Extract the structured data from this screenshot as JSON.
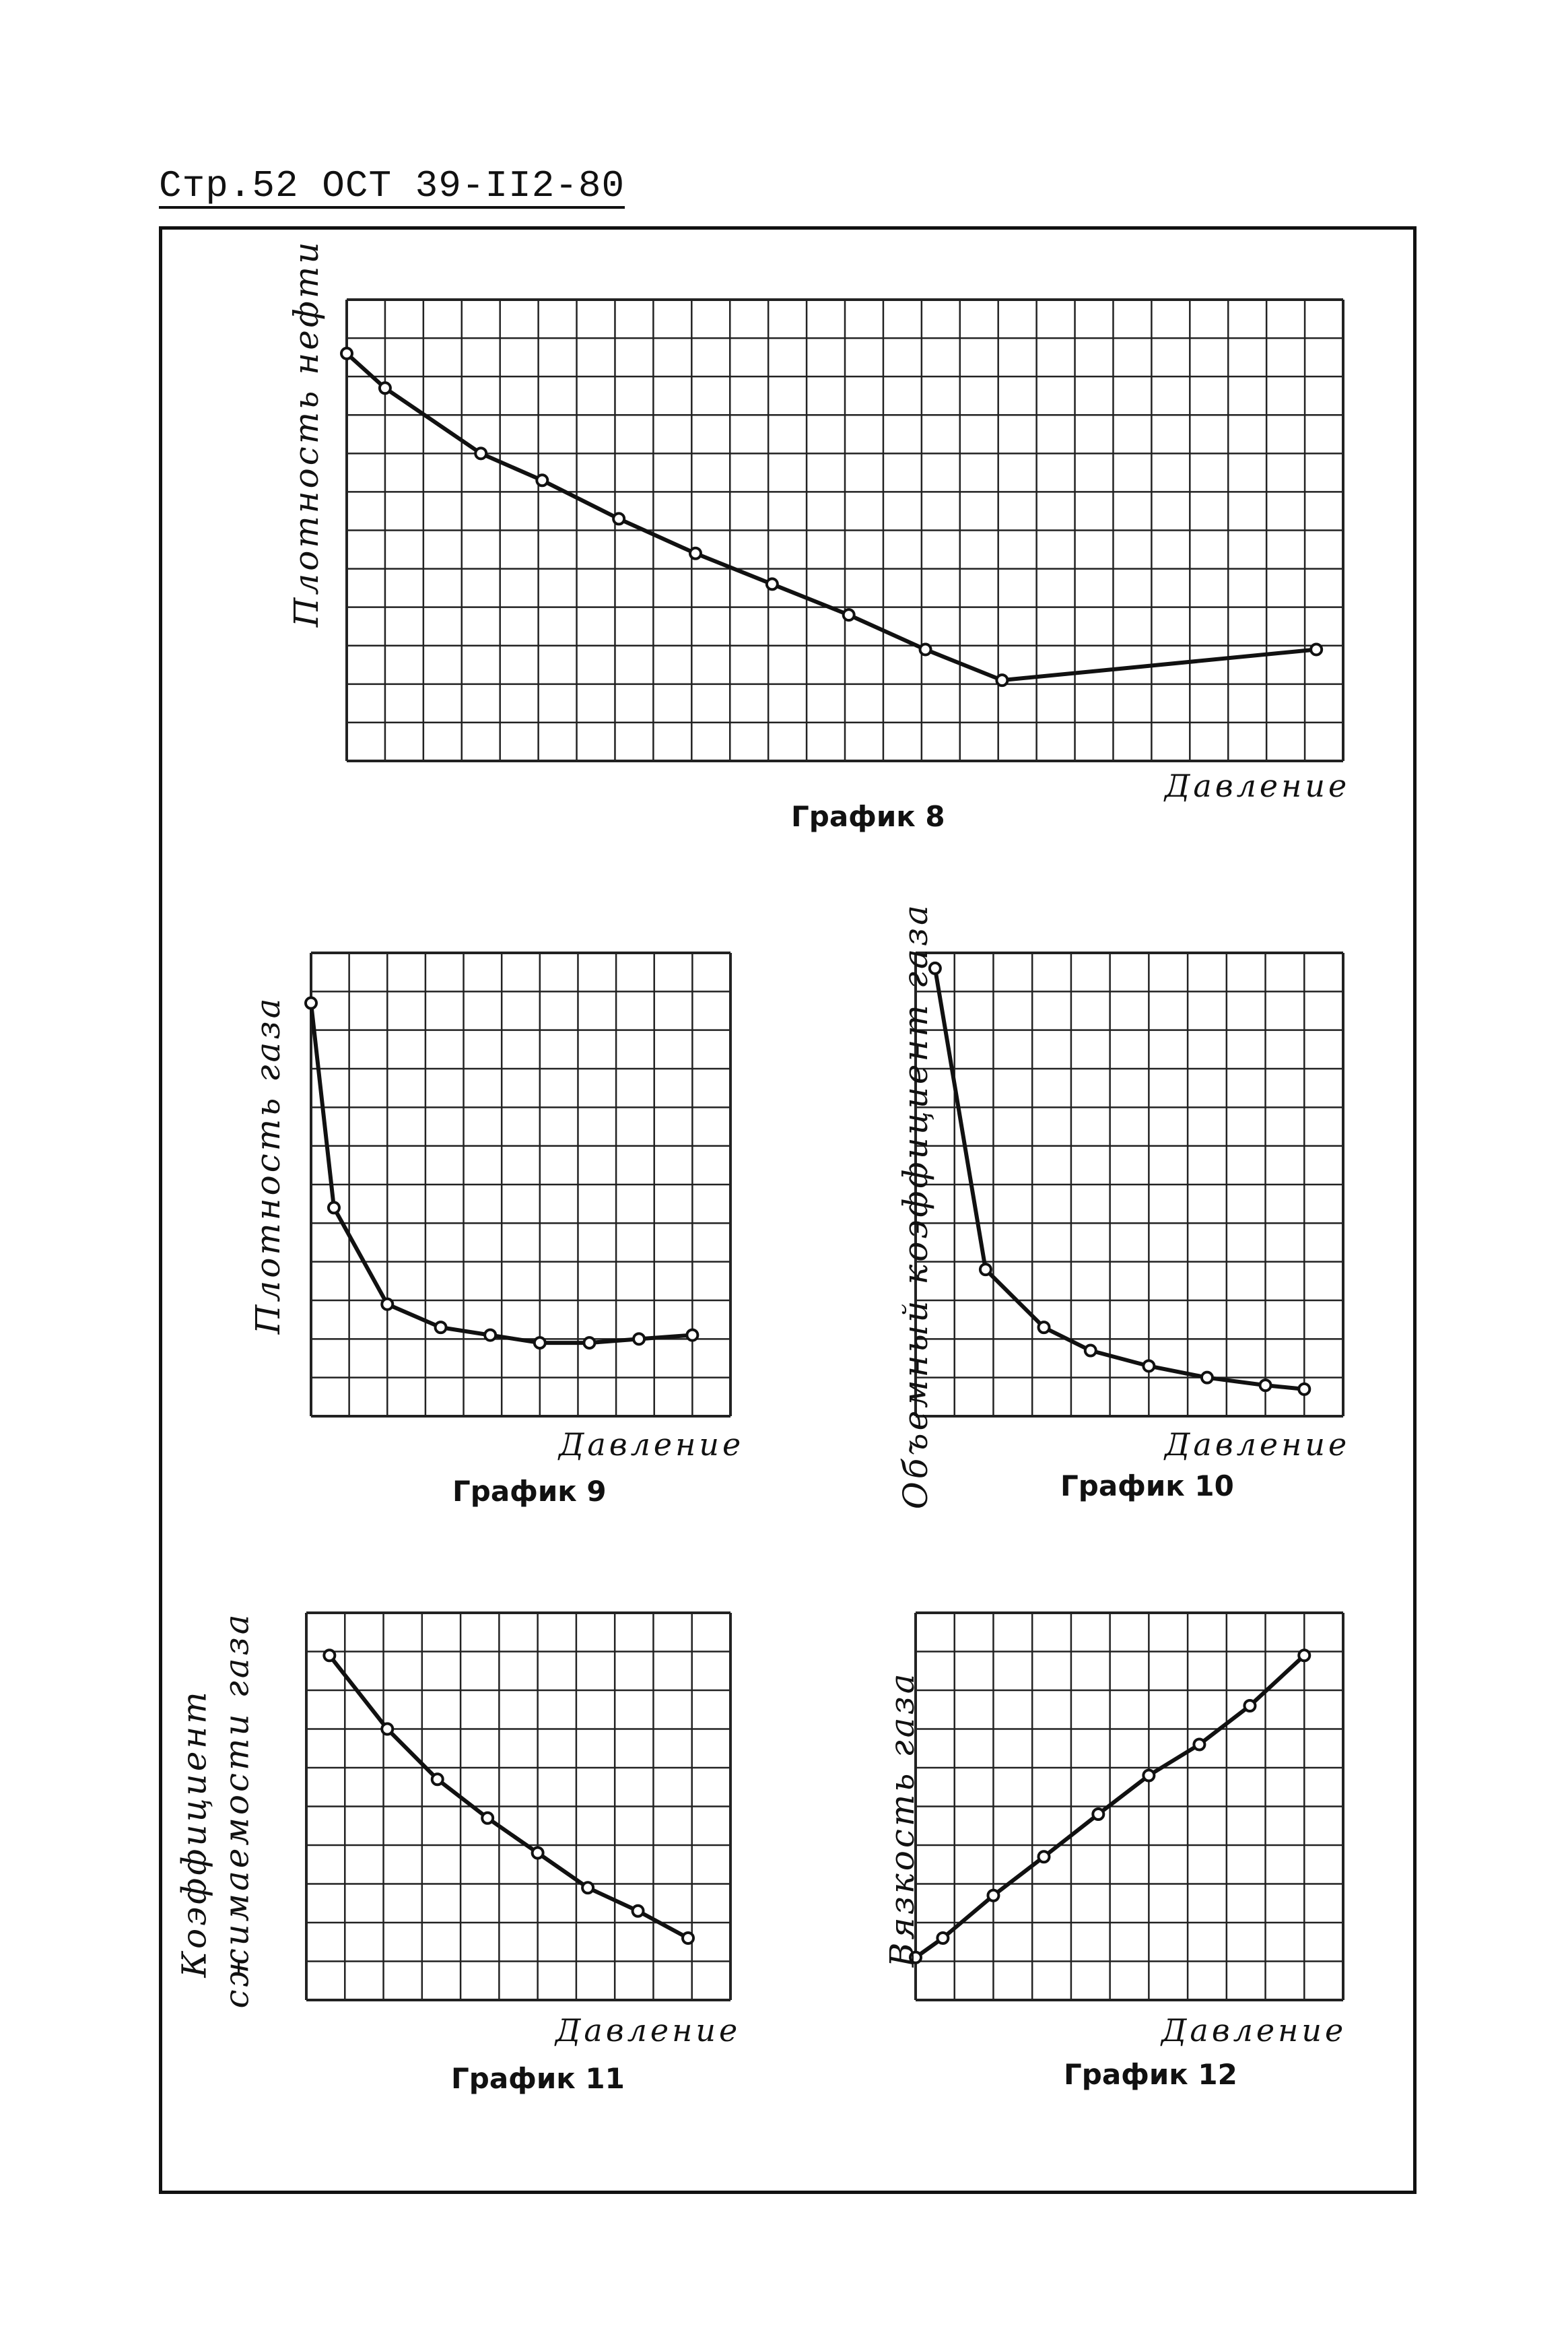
{
  "header": {
    "text": "Стр.52 ОСТ 39-II2-80"
  },
  "charts": [
    {
      "caption": "График 8",
      "chart_data": {
        "type": "line",
        "ylabel": "Плотность нефти",
        "xlabel": "Давление",
        "xlim": [
          0,
          26
        ],
        "ylim": [
          0,
          12
        ],
        "x": [
          0,
          1,
          3.5,
          5.1,
          7.1,
          9.1,
          11.1,
          13.1,
          15.1,
          17.1,
          25.3
        ],
        "y": [
          10.6,
          9.7,
          8.0,
          7.3,
          6.3,
          5.4,
          4.6,
          3.8,
          2.9,
          2.1,
          2.9
        ]
      }
    },
    {
      "caption": "График 9",
      "chart_data": {
        "type": "line",
        "ylabel": "Плотность газа",
        "xlabel": "Давление",
        "xlim": [
          0,
          11
        ],
        "ylim": [
          0,
          12
        ],
        "x": [
          0,
          0.6,
          2.0,
          3.4,
          4.7,
          6.0,
          7.3,
          8.6,
          10.0
        ],
        "y": [
          10.7,
          5.4,
          2.9,
          2.3,
          2.1,
          1.9,
          1.9,
          2.0,
          2.1
        ]
      }
    },
    {
      "caption": "График 10",
      "chart_data": {
        "type": "line",
        "ylabel": "Объемный коэффициент газа",
        "xlabel": "Давление",
        "xlim": [
          0,
          11
        ],
        "ylim": [
          0,
          12
        ],
        "x": [
          0.5,
          1.8,
          3.3,
          4.5,
          6.0,
          7.5,
          9.0,
          10.0
        ],
        "y": [
          11.6,
          3.8,
          2.3,
          1.7,
          1.3,
          1.0,
          0.8,
          0.7
        ]
      }
    },
    {
      "caption": "График 11",
      "chart_data": {
        "type": "line",
        "ylabel": "Коэффициент сжимаемости газа",
        "xlabel": "Давление",
        "xlim": [
          0,
          11
        ],
        "ylim": [
          0,
          10
        ],
        "x": [
          0.6,
          2.1,
          3.4,
          4.7,
          6.0,
          7.3,
          8.6,
          9.9
        ],
        "y": [
          8.9,
          7.0,
          5.7,
          4.7,
          3.8,
          2.9,
          2.3,
          1.6
        ]
      }
    },
    {
      "caption": "График 12",
      "chart_data": {
        "type": "line",
        "ylabel": "Вязкость газа",
        "xlabel": "Давление",
        "xlim": [
          0,
          11
        ],
        "ylim": [
          0,
          10
        ],
        "x": [
          0,
          0.7,
          2.0,
          3.3,
          4.7,
          6.0,
          7.3,
          8.6,
          10.0
        ],
        "y": [
          1.1,
          1.6,
          2.7,
          3.7,
          4.8,
          5.8,
          6.6,
          7.6,
          8.9
        ]
      }
    }
  ]
}
